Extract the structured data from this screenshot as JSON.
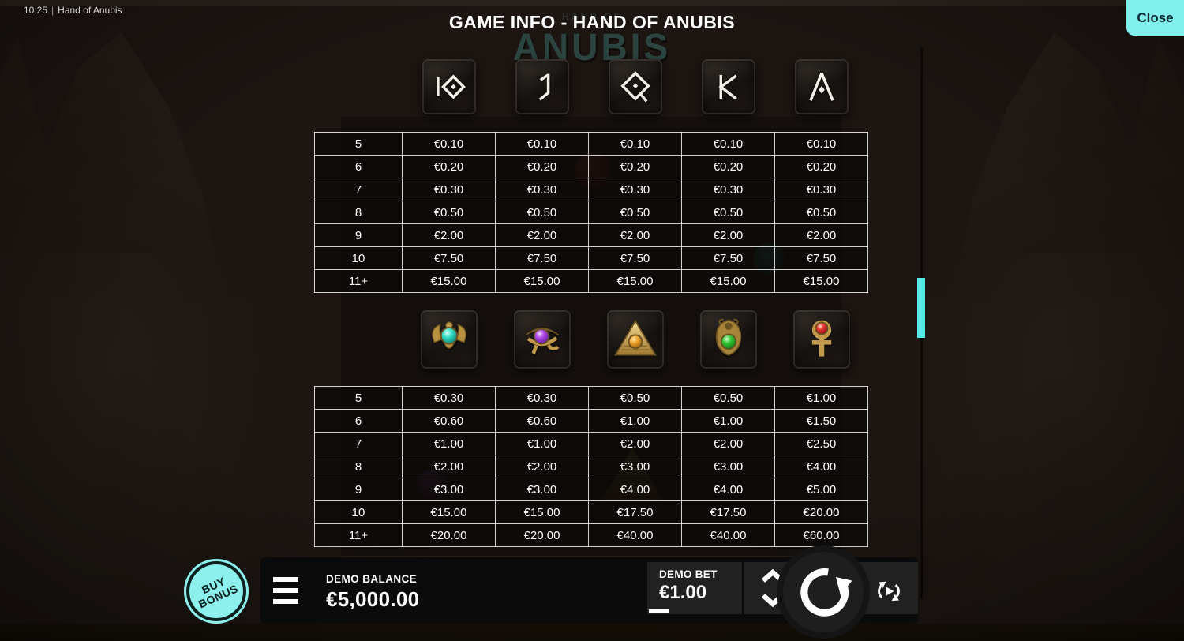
{
  "topbar": {
    "time": "10:25",
    "divider": "|",
    "game_name": "Hand of Anubis"
  },
  "header": {
    "title": "GAME INFO - HAND OF ANUBIS",
    "close_label": "Close"
  },
  "background": {
    "logo_small": "HAND OF",
    "logo_text": "ANUBIS"
  },
  "paytables": [
    {
      "name": "low-symbols",
      "symbols": [
        {
          "icon": "rune-10-icon",
          "label": "10"
        },
        {
          "icon": "rune-j-icon",
          "label": "J"
        },
        {
          "icon": "rune-q-icon",
          "label": "Q"
        },
        {
          "icon": "rune-k-icon",
          "label": "K"
        },
        {
          "icon": "rune-a-icon",
          "label": "A"
        }
      ],
      "rows": [
        {
          "count": "5",
          "values": [
            "€0.10",
            "€0.10",
            "€0.10",
            "€0.10",
            "€0.10"
          ]
        },
        {
          "count": "6",
          "values": [
            "€0.20",
            "€0.20",
            "€0.20",
            "€0.20",
            "€0.20"
          ]
        },
        {
          "count": "7",
          "values": [
            "€0.30",
            "€0.30",
            "€0.30",
            "€0.30",
            "€0.30"
          ]
        },
        {
          "count": "8",
          "values": [
            "€0.50",
            "€0.50",
            "€0.50",
            "€0.50",
            "€0.50"
          ]
        },
        {
          "count": "9",
          "values": [
            "€2.00",
            "€2.00",
            "€2.00",
            "€2.00",
            "€2.00"
          ]
        },
        {
          "count": "10",
          "values": [
            "€7.50",
            "€7.50",
            "€7.50",
            "€7.50",
            "€7.50"
          ]
        },
        {
          "count": "11+",
          "values": [
            "€15.00",
            "€15.00",
            "€15.00",
            "€15.00",
            "€15.00"
          ]
        }
      ]
    },
    {
      "name": "high-symbols",
      "symbols": [
        {
          "icon": "scarab-icon",
          "label": "Scarab"
        },
        {
          "icon": "eye-of-horus-icon",
          "label": "Eye of Horus"
        },
        {
          "icon": "pyramid-icon",
          "label": "Pyramid"
        },
        {
          "icon": "cobra-icon",
          "label": "Cobra"
        },
        {
          "icon": "ankh-icon",
          "label": "Ankh"
        }
      ],
      "rows": [
        {
          "count": "5",
          "values": [
            "€0.30",
            "€0.30",
            "€0.50",
            "€0.50",
            "€1.00"
          ]
        },
        {
          "count": "6",
          "values": [
            "€0.60",
            "€0.60",
            "€1.00",
            "€1.00",
            "€1.50"
          ]
        },
        {
          "count": "7",
          "values": [
            "€1.00",
            "€1.00",
            "€2.00",
            "€2.00",
            "€2.50"
          ]
        },
        {
          "count": "8",
          "values": [
            "€2.00",
            "€2.00",
            "€3.00",
            "€3.00",
            "€4.00"
          ]
        },
        {
          "count": "9",
          "values": [
            "€3.00",
            "€3.00",
            "€4.00",
            "€4.00",
            "€5.00"
          ]
        },
        {
          "count": "10",
          "values": [
            "€15.00",
            "€15.00",
            "€17.50",
            "€17.50",
            "€20.00"
          ]
        },
        {
          "count": "11+",
          "values": [
            "€20.00",
            "€20.00",
            "€40.00",
            "€40.00",
            "€60.00"
          ]
        }
      ]
    }
  ],
  "bottom_bar": {
    "buy_bonus_line1": "BUY",
    "buy_bonus_line2": "BONUS",
    "balance_label": "DEMO BALANCE",
    "balance_value": "€5,000.00",
    "bet_label": "DEMO BET",
    "bet_value": "€1.00"
  },
  "colors": {
    "accent_cyan": "#7ff0eb",
    "scroll_thumb": "#55e8e4",
    "gold": "#c09a4a",
    "close_text": "#0d2733"
  }
}
